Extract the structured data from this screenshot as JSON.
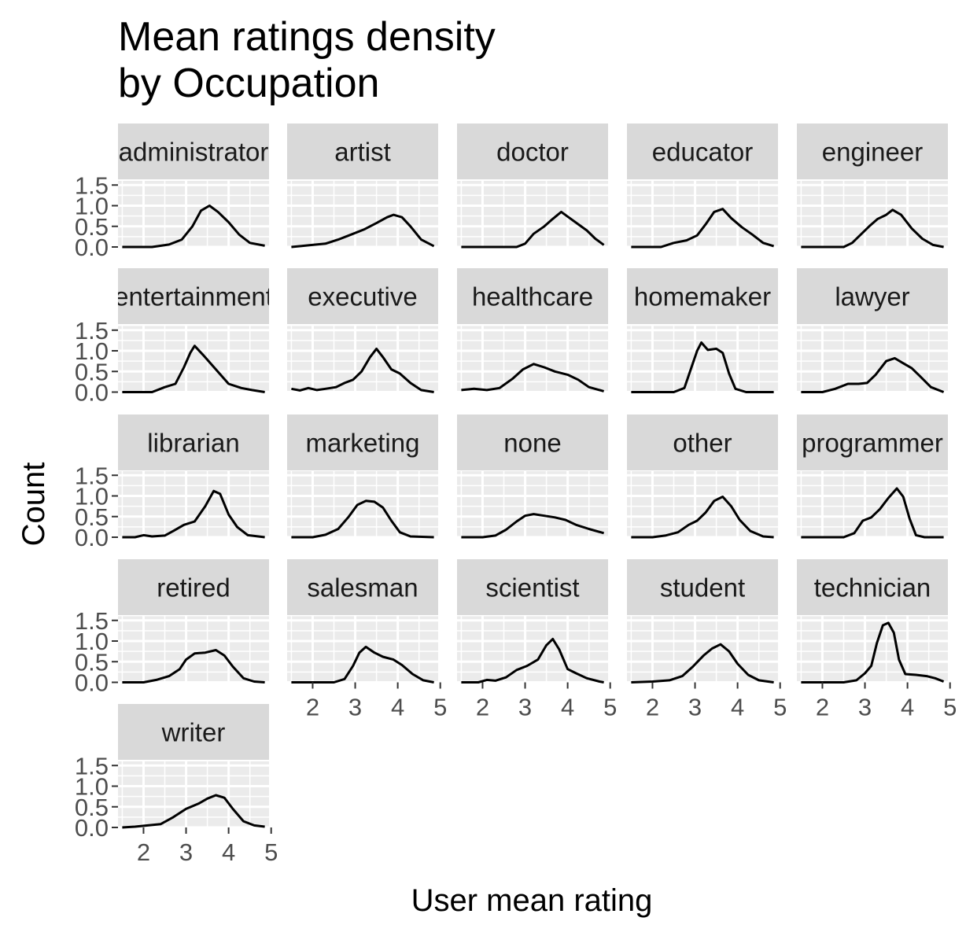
{
  "chart_data": {
    "type": "line",
    "subtype": "faceted density",
    "title_lines": [
      "Mean ratings density",
      "by Occupation"
    ],
    "xlabel": "User mean rating",
    "ylabel": "Count",
    "xlim": [
      1.4,
      4.95
    ],
    "ylim": [
      0,
      1.6
    ],
    "xticks": [
      2,
      3,
      4,
      5
    ],
    "yticks": [
      0.0,
      0.5,
      1.0,
      1.5
    ],
    "ytick_labels": [
      "0.0",
      "0.5",
      "1.0",
      "1.5"
    ],
    "grid": true,
    "panel_background": "#ebebeb",
    "strip_background": "#d9d9d9",
    "line_color": "#000000",
    "facets": [
      {
        "label": "administrator",
        "points": [
          [
            1.5,
            0
          ],
          [
            2.2,
            0
          ],
          [
            2.6,
            0.06
          ],
          [
            2.9,
            0.18
          ],
          [
            3.15,
            0.5
          ],
          [
            3.35,
            0.88
          ],
          [
            3.55,
            1.0
          ],
          [
            3.75,
            0.85
          ],
          [
            4.0,
            0.6
          ],
          [
            4.25,
            0.3
          ],
          [
            4.5,
            0.1
          ],
          [
            4.85,
            0.03
          ]
        ]
      },
      {
        "label": "artist",
        "points": [
          [
            1.5,
            0
          ],
          [
            1.9,
            0.04
          ],
          [
            2.3,
            0.08
          ],
          [
            2.6,
            0.18
          ],
          [
            2.9,
            0.3
          ],
          [
            3.2,
            0.42
          ],
          [
            3.5,
            0.58
          ],
          [
            3.75,
            0.72
          ],
          [
            3.9,
            0.78
          ],
          [
            4.1,
            0.72
          ],
          [
            4.3,
            0.5
          ],
          [
            4.55,
            0.18
          ],
          [
            4.85,
            0.02
          ]
        ]
      },
      {
        "label": "doctor",
        "points": [
          [
            1.5,
            0
          ],
          [
            2.8,
            0
          ],
          [
            3.0,
            0.08
          ],
          [
            3.2,
            0.32
          ],
          [
            3.45,
            0.5
          ],
          [
            3.65,
            0.68
          ],
          [
            3.85,
            0.85
          ],
          [
            4.05,
            0.7
          ],
          [
            4.25,
            0.55
          ],
          [
            4.45,
            0.4
          ],
          [
            4.65,
            0.2
          ],
          [
            4.85,
            0.05
          ]
        ]
      },
      {
        "label": "educator",
        "points": [
          [
            1.5,
            0
          ],
          [
            2.2,
            0
          ],
          [
            2.5,
            0.1
          ],
          [
            2.8,
            0.16
          ],
          [
            3.05,
            0.28
          ],
          [
            3.25,
            0.55
          ],
          [
            3.45,
            0.85
          ],
          [
            3.65,
            0.92
          ],
          [
            3.85,
            0.7
          ],
          [
            4.1,
            0.48
          ],
          [
            4.35,
            0.3
          ],
          [
            4.6,
            0.1
          ],
          [
            4.85,
            0.02
          ]
        ]
      },
      {
        "label": "engineer",
        "points": [
          [
            1.5,
            0
          ],
          [
            2.5,
            0
          ],
          [
            2.7,
            0.1
          ],
          [
            2.9,
            0.3
          ],
          [
            3.1,
            0.5
          ],
          [
            3.3,
            0.68
          ],
          [
            3.5,
            0.78
          ],
          [
            3.65,
            0.9
          ],
          [
            3.85,
            0.78
          ],
          [
            4.1,
            0.45
          ],
          [
            4.35,
            0.2
          ],
          [
            4.6,
            0.05
          ],
          [
            4.85,
            0.0
          ]
        ]
      },
      {
        "label": "entertainment",
        "points": [
          [
            1.5,
            0
          ],
          [
            2.2,
            0
          ],
          [
            2.5,
            0.12
          ],
          [
            2.75,
            0.2
          ],
          [
            2.95,
            0.6
          ],
          [
            3.1,
            0.95
          ],
          [
            3.2,
            1.12
          ],
          [
            3.4,
            0.9
          ],
          [
            3.7,
            0.55
          ],
          [
            4.0,
            0.2
          ],
          [
            4.3,
            0.1
          ],
          [
            4.55,
            0.05
          ],
          [
            4.85,
            0
          ]
        ]
      },
      {
        "label": "executive",
        "points": [
          [
            1.5,
            0.08
          ],
          [
            1.7,
            0.04
          ],
          [
            1.9,
            0.1
          ],
          [
            2.1,
            0.05
          ],
          [
            2.3,
            0.08
          ],
          [
            2.55,
            0.12
          ],
          [
            2.75,
            0.22
          ],
          [
            2.95,
            0.3
          ],
          [
            3.15,
            0.5
          ],
          [
            3.35,
            0.85
          ],
          [
            3.5,
            1.05
          ],
          [
            3.65,
            0.85
          ],
          [
            3.85,
            0.55
          ],
          [
            4.05,
            0.45
          ],
          [
            4.3,
            0.22
          ],
          [
            4.55,
            0.05
          ],
          [
            4.85,
            0.0
          ]
        ]
      },
      {
        "label": "healthcare",
        "points": [
          [
            1.5,
            0.05
          ],
          [
            1.8,
            0.08
          ],
          [
            2.1,
            0.05
          ],
          [
            2.4,
            0.1
          ],
          [
            2.7,
            0.32
          ],
          [
            2.95,
            0.55
          ],
          [
            3.2,
            0.68
          ],
          [
            3.45,
            0.6
          ],
          [
            3.7,
            0.5
          ],
          [
            4.0,
            0.42
          ],
          [
            4.25,
            0.3
          ],
          [
            4.5,
            0.12
          ],
          [
            4.85,
            0.02
          ]
        ]
      },
      {
        "label": "homemaker",
        "points": [
          [
            1.5,
            0
          ],
          [
            2.5,
            0
          ],
          [
            2.75,
            0.1
          ],
          [
            2.9,
            0.55
          ],
          [
            3.05,
            1.0
          ],
          [
            3.15,
            1.2
          ],
          [
            3.3,
            1.02
          ],
          [
            3.5,
            1.05
          ],
          [
            3.65,
            0.95
          ],
          [
            3.8,
            0.45
          ],
          [
            3.95,
            0.08
          ],
          [
            4.2,
            0.0
          ],
          [
            4.85,
            0.0
          ]
        ]
      },
      {
        "label": "lawyer",
        "points": [
          [
            1.5,
            0
          ],
          [
            2.0,
            0
          ],
          [
            2.3,
            0.08
          ],
          [
            2.6,
            0.2
          ],
          [
            2.85,
            0.2
          ],
          [
            3.05,
            0.22
          ],
          [
            3.25,
            0.42
          ],
          [
            3.5,
            0.75
          ],
          [
            3.7,
            0.82
          ],
          [
            3.9,
            0.7
          ],
          [
            4.1,
            0.58
          ],
          [
            4.3,
            0.38
          ],
          [
            4.55,
            0.12
          ],
          [
            4.85,
            0.0
          ]
        ]
      },
      {
        "label": "librarian",
        "points": [
          [
            1.5,
            0
          ],
          [
            1.8,
            0
          ],
          [
            2.0,
            0.05
          ],
          [
            2.2,
            0.02
          ],
          [
            2.5,
            0.04
          ],
          [
            2.7,
            0.15
          ],
          [
            2.95,
            0.3
          ],
          [
            3.2,
            0.38
          ],
          [
            3.45,
            0.75
          ],
          [
            3.65,
            1.12
          ],
          [
            3.8,
            1.05
          ],
          [
            4.0,
            0.55
          ],
          [
            4.2,
            0.25
          ],
          [
            4.45,
            0.05
          ],
          [
            4.85,
            0
          ]
        ]
      },
      {
        "label": "marketing",
        "points": [
          [
            1.5,
            0
          ],
          [
            2.0,
            0
          ],
          [
            2.3,
            0.06
          ],
          [
            2.6,
            0.2
          ],
          [
            2.85,
            0.5
          ],
          [
            3.05,
            0.78
          ],
          [
            3.25,
            0.88
          ],
          [
            3.45,
            0.86
          ],
          [
            3.65,
            0.72
          ],
          [
            3.85,
            0.4
          ],
          [
            4.05,
            0.12
          ],
          [
            4.3,
            0.02
          ],
          [
            4.85,
            0
          ]
        ]
      },
      {
        "label": "none",
        "points": [
          [
            1.5,
            0
          ],
          [
            2.0,
            0
          ],
          [
            2.3,
            0.04
          ],
          [
            2.55,
            0.18
          ],
          [
            2.8,
            0.38
          ],
          [
            3.0,
            0.52
          ],
          [
            3.2,
            0.56
          ],
          [
            3.45,
            0.52
          ],
          [
            3.7,
            0.48
          ],
          [
            3.95,
            0.42
          ],
          [
            4.2,
            0.3
          ],
          [
            4.5,
            0.2
          ],
          [
            4.85,
            0.1
          ]
        ]
      },
      {
        "label": "other",
        "points": [
          [
            1.5,
            0
          ],
          [
            2.0,
            0
          ],
          [
            2.3,
            0.04
          ],
          [
            2.6,
            0.12
          ],
          [
            2.85,
            0.3
          ],
          [
            3.05,
            0.4
          ],
          [
            3.25,
            0.6
          ],
          [
            3.45,
            0.88
          ],
          [
            3.65,
            0.98
          ],
          [
            3.85,
            0.75
          ],
          [
            4.05,
            0.42
          ],
          [
            4.3,
            0.15
          ],
          [
            4.6,
            0.02
          ],
          [
            4.85,
            0
          ]
        ]
      },
      {
        "label": "programmer",
        "points": [
          [
            1.5,
            0
          ],
          [
            2.5,
            0
          ],
          [
            2.75,
            0.1
          ],
          [
            2.95,
            0.4
          ],
          [
            3.15,
            0.48
          ],
          [
            3.35,
            0.68
          ],
          [
            3.55,
            0.95
          ],
          [
            3.75,
            1.18
          ],
          [
            3.9,
            0.98
          ],
          [
            4.05,
            0.45
          ],
          [
            4.2,
            0.05
          ],
          [
            4.4,
            0
          ],
          [
            4.85,
            0
          ]
        ]
      },
      {
        "label": "retired",
        "points": [
          [
            1.5,
            0
          ],
          [
            2.0,
            0
          ],
          [
            2.3,
            0.06
          ],
          [
            2.6,
            0.15
          ],
          [
            2.85,
            0.32
          ],
          [
            3.0,
            0.55
          ],
          [
            3.2,
            0.7
          ],
          [
            3.45,
            0.72
          ],
          [
            3.7,
            0.78
          ],
          [
            3.9,
            0.65
          ],
          [
            4.1,
            0.38
          ],
          [
            4.35,
            0.1
          ],
          [
            4.6,
            0.02
          ],
          [
            4.85,
            0
          ]
        ]
      },
      {
        "label": "salesman",
        "points": [
          [
            1.5,
            0
          ],
          [
            2.5,
            0
          ],
          [
            2.75,
            0.08
          ],
          [
            2.95,
            0.4
          ],
          [
            3.1,
            0.72
          ],
          [
            3.25,
            0.86
          ],
          [
            3.45,
            0.72
          ],
          [
            3.65,
            0.62
          ],
          [
            3.9,
            0.55
          ],
          [
            4.1,
            0.42
          ],
          [
            4.35,
            0.2
          ],
          [
            4.6,
            0.05
          ],
          [
            4.85,
            0
          ]
        ]
      },
      {
        "label": "scientist",
        "points": [
          [
            1.5,
            0
          ],
          [
            1.9,
            0
          ],
          [
            2.1,
            0.06
          ],
          [
            2.3,
            0.04
          ],
          [
            2.55,
            0.12
          ],
          [
            2.8,
            0.3
          ],
          [
            3.05,
            0.4
          ],
          [
            3.3,
            0.55
          ],
          [
            3.5,
            0.9
          ],
          [
            3.65,
            1.05
          ],
          [
            3.8,
            0.8
          ],
          [
            4.0,
            0.32
          ],
          [
            4.2,
            0.22
          ],
          [
            4.45,
            0.1
          ],
          [
            4.75,
            0.02
          ],
          [
            4.85,
            0
          ]
        ]
      },
      {
        "label": "student",
        "points": [
          [
            1.5,
            0
          ],
          [
            2.0,
            0.02
          ],
          [
            2.4,
            0.05
          ],
          [
            2.7,
            0.15
          ],
          [
            2.95,
            0.38
          ],
          [
            3.2,
            0.65
          ],
          [
            3.4,
            0.82
          ],
          [
            3.6,
            0.92
          ],
          [
            3.8,
            0.75
          ],
          [
            4.0,
            0.45
          ],
          [
            4.25,
            0.18
          ],
          [
            4.5,
            0.05
          ],
          [
            4.85,
            0
          ]
        ]
      },
      {
        "label": "technician",
        "points": [
          [
            1.5,
            0
          ],
          [
            2.5,
            0
          ],
          [
            2.8,
            0.05
          ],
          [
            3.0,
            0.22
          ],
          [
            3.15,
            0.4
          ],
          [
            3.28,
            0.95
          ],
          [
            3.42,
            1.38
          ],
          [
            3.55,
            1.44
          ],
          [
            3.68,
            1.2
          ],
          [
            3.8,
            0.55
          ],
          [
            3.95,
            0.2
          ],
          [
            4.2,
            0.18
          ],
          [
            4.45,
            0.15
          ],
          [
            4.65,
            0.1
          ],
          [
            4.85,
            0.02
          ]
        ]
      },
      {
        "label": "writer",
        "points": [
          [
            1.5,
            0
          ],
          [
            1.8,
            0.02
          ],
          [
            2.1,
            0.05
          ],
          [
            2.4,
            0.08
          ],
          [
            2.7,
            0.25
          ],
          [
            3.0,
            0.45
          ],
          [
            3.3,
            0.58
          ],
          [
            3.5,
            0.7
          ],
          [
            3.7,
            0.78
          ],
          [
            3.9,
            0.72
          ],
          [
            4.1,
            0.45
          ],
          [
            4.35,
            0.15
          ],
          [
            4.6,
            0.05
          ],
          [
            4.85,
            0.02
          ]
        ]
      }
    ]
  }
}
